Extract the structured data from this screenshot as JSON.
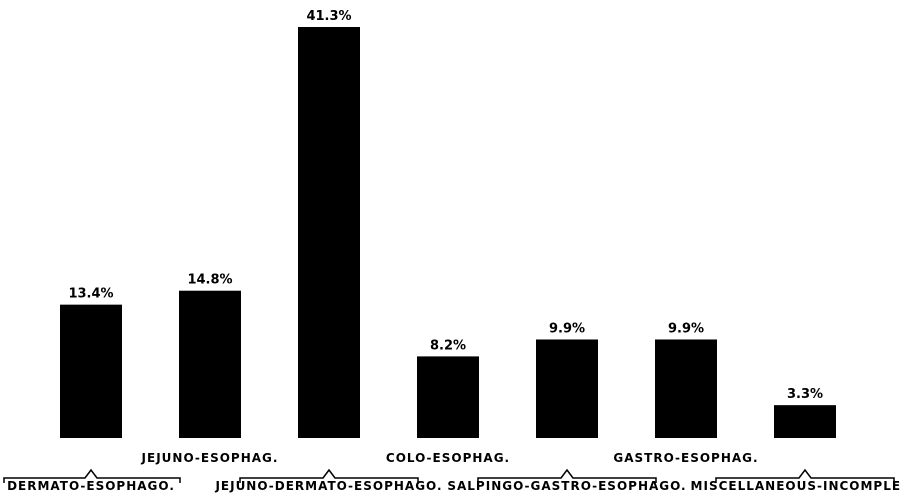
{
  "chart_data": {
    "type": "bar",
    "title": "",
    "xlabel": "",
    "ylabel": "",
    "ylim": [
      0,
      41.3
    ],
    "grid": false,
    "legend": "none",
    "categories": [
      "DERMATO-ESOPHAGO.",
      "JEJUNO-ESOPHAG.",
      "JEJUNO-DERMATO-ESOPHAGO.",
      "COLO-ESOPHAG.",
      "SALPINGO-GASTRO-ESOPHAGO.",
      "GASTRO-ESOPHAG.",
      "MISCELLANEOUS-INCOMPLETE"
    ],
    "values": [
      13.4,
      14.8,
      41.3,
      8.2,
      9.9,
      9.9,
      3.3
    ],
    "value_labels": [
      "13.4%",
      "14.8%",
      "41.3%",
      "8.2%",
      "9.9%",
      "9.9%",
      "3.3%"
    ],
    "bar_color": "#000000",
    "label_rows": [
      "bottom",
      "top",
      "bottom",
      "top",
      "bottom",
      "top",
      "bottom"
    ]
  }
}
